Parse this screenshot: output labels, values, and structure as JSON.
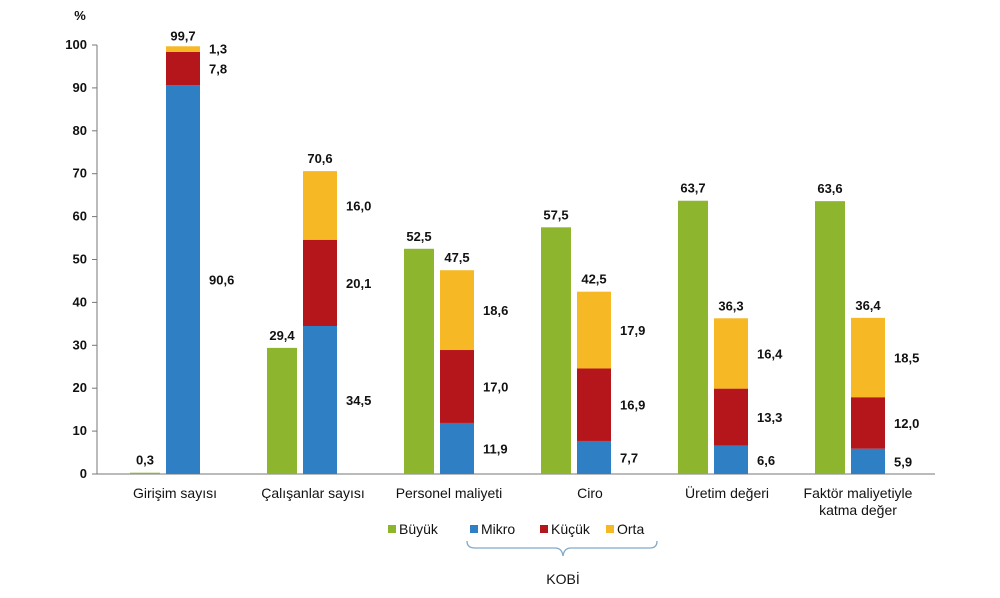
{
  "chart_data": {
    "type": "bar",
    "title": "",
    "ylabel": "%",
    "xlabel": "",
    "ylim": [
      0,
      100
    ],
    "yticks": [
      0,
      10,
      20,
      30,
      40,
      50,
      60,
      70,
      80,
      90,
      100
    ],
    "categories": [
      [
        "Girişim sayısı"
      ],
      [
        "Çalışanlar sayısı"
      ],
      [
        "Personel maliyeti"
      ],
      [
        "Ciro"
      ],
      [
        "Üretim değeri"
      ],
      [
        "Faktör maliyetiyle",
        "katma değer"
      ]
    ],
    "series": [
      {
        "name": "Büyük",
        "color": "#8db52e",
        "stack": "buyuk",
        "values": [
          0.3,
          29.4,
          52.5,
          57.5,
          63.7,
          63.6
        ],
        "labels": [
          "0,3",
          "29,4",
          "52,5",
          "57,5",
          "63,7",
          "63,6"
        ]
      },
      {
        "name": "Mikro",
        "color": "#2e7fc4",
        "stack": "kobi",
        "values": [
          90.6,
          34.5,
          11.9,
          7.7,
          6.6,
          5.9
        ],
        "labels": [
          "90,6",
          "34,5",
          "11,9",
          "7,7",
          "6,6",
          "5,9"
        ]
      },
      {
        "name": "Küçük",
        "color": "#b5161b",
        "stack": "kobi",
        "values": [
          7.8,
          20.1,
          17.0,
          16.9,
          13.3,
          12.0
        ],
        "labels": [
          "7,8",
          "20,1",
          "17,0",
          "16,9",
          "13,3",
          "12,0"
        ]
      },
      {
        "name": "Orta",
        "color": "#f6b824",
        "stack": "kobi",
        "values": [
          1.3,
          16.0,
          18.6,
          17.9,
          16.4,
          18.5
        ],
        "labels": [
          "1,3",
          "16,0",
          "18,6",
          "17,9",
          "16,4",
          "18,5"
        ]
      }
    ],
    "kobi_totals": [
      99.7,
      70.6,
      47.5,
      42.5,
      36.3,
      36.4
    ],
    "kobi_total_labels": [
      "99,7",
      "70,6",
      "47,5",
      "42,5",
      "36,3",
      "36,4"
    ],
    "legend_group_label": "KOBİ",
    "legend_position": "bottom",
    "grid": false
  }
}
